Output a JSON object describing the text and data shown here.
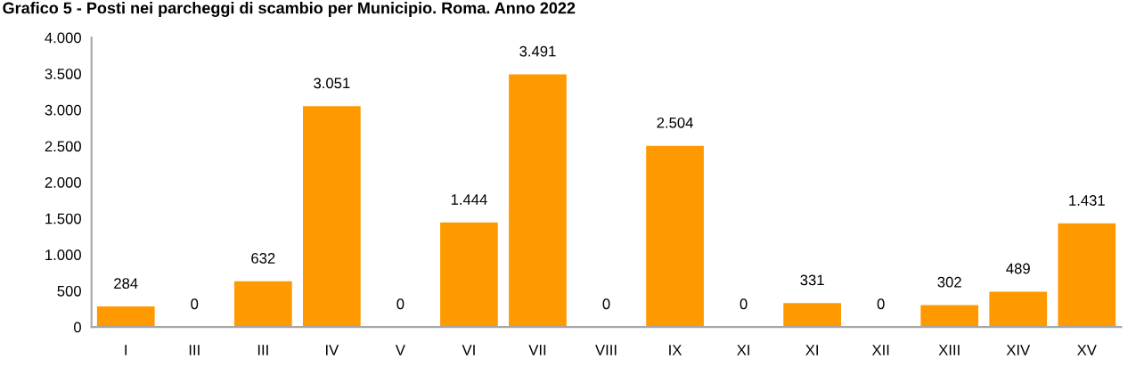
{
  "chart_data": {
    "type": "bar",
    "title": "Grafico 5 - Posti nei parcheggi di scambio per Municipio. Roma. Anno 2022",
    "categories": [
      "I",
      "III",
      "III",
      "IV",
      "V",
      "VI",
      "VII",
      "VIII",
      "IX",
      "XI",
      "XI",
      "XII",
      "XIII",
      "XIV",
      "XV"
    ],
    "values": [
      284,
      0,
      632,
      3051,
      0,
      1444,
      3491,
      0,
      2504,
      0,
      331,
      0,
      302,
      489,
      1431
    ],
    "value_labels": [
      "284",
      "0",
      "632",
      "3.051",
      "0",
      "1.444",
      "3.491",
      "0",
      "2.504",
      "0",
      "331",
      "0",
      "302",
      "489",
      "1.431"
    ],
    "color": "#ff9900",
    "ylim": [
      0,
      4000
    ],
    "yticks": [
      0,
      500,
      {
        "value": 1000,
        "label": "1.000"
      },
      {
        "value": 1500,
        "label": "1.500"
      },
      {
        "value": 2000,
        "label": "2.000"
      },
      {
        "value": 2500,
        "label": "2.500"
      },
      {
        "value": 3000,
        "label": "3.000"
      },
      {
        "value": 3500,
        "label": "3.500"
      },
      {
        "value": 4000,
        "label": "4.000"
      }
    ]
  }
}
